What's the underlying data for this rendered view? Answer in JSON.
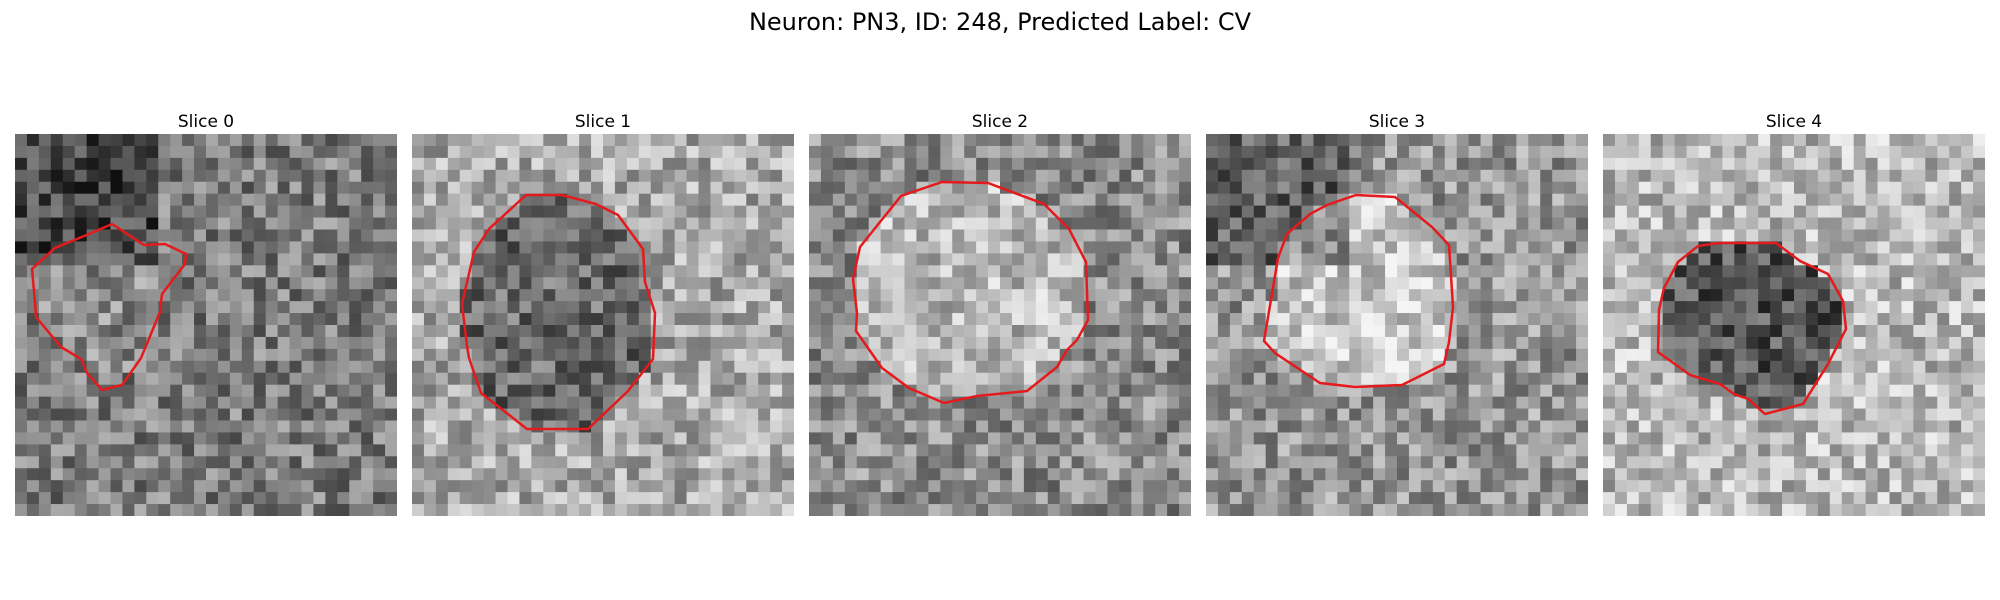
{
  "figure": {
    "title": "Neuron: PN3, ID: 248, Predicted Label: CV"
  },
  "panels": [
    {
      "title": "Slice 0"
    },
    {
      "title": "Slice 1"
    },
    {
      "title": "Slice 2"
    },
    {
      "title": "Slice 3"
    },
    {
      "title": "Slice 4"
    }
  ],
  "colors": {
    "contour": "#e41a1c",
    "background": "#ffffff"
  }
}
